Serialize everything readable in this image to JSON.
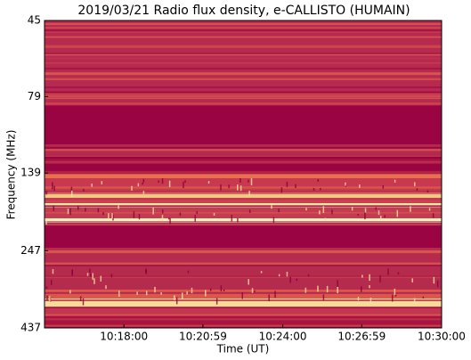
{
  "chart_data": {
    "type": "spectrogram",
    "title": "2019/03/21  Radio flux density, e-CALLISTO (HUMAIN)",
    "xlabel": "Time (UT)",
    "ylabel": "Frequency (MHz)",
    "xlim": [
      "10:15:00",
      "10:30:00"
    ],
    "xticks": [
      "10:18:00",
      "10:20:59",
      "10:24:00",
      "10:26:59",
      "10:30:00"
    ],
    "ylim": [
      437,
      45
    ],
    "yscale": "log",
    "yticks": [
      45,
      79,
      139,
      247,
      437
    ]
  }
}
